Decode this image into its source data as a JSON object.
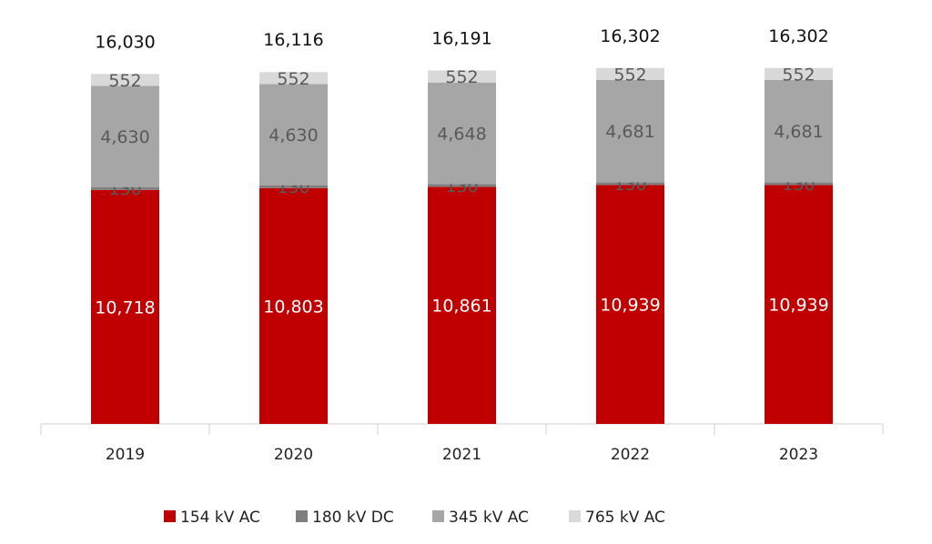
{
  "chart_data": {
    "type": "bar",
    "stacked": true,
    "title": "",
    "xlabel": "",
    "ylabel": "",
    "categories": [
      "2019",
      "2020",
      "2021",
      "2022",
      "2023"
    ],
    "series": [
      {
        "name": "154 kV AC",
        "color": "#C00000",
        "values": [
          10718,
          10803,
          10861,
          10939,
          10939
        ]
      },
      {
        "name": "180 kV DC",
        "color": "#7F7F7F",
        "values": [
          130,
          130,
          130,
          130,
          130
        ]
      },
      {
        "name": "345 kV AC",
        "color": "#A6A6A6",
        "values": [
          4630,
          4630,
          4648,
          4681,
          4681
        ]
      },
      {
        "name": "765 kV AC",
        "color": "#D9D9D9",
        "values": [
          552,
          552,
          552,
          552,
          552
        ]
      }
    ],
    "totals": [
      "16,030",
      "16,116",
      "16,191",
      "16,302",
      "16,302"
    ],
    "ylim": [
      0,
      19000
    ],
    "grid": false,
    "legend": "bottom"
  }
}
